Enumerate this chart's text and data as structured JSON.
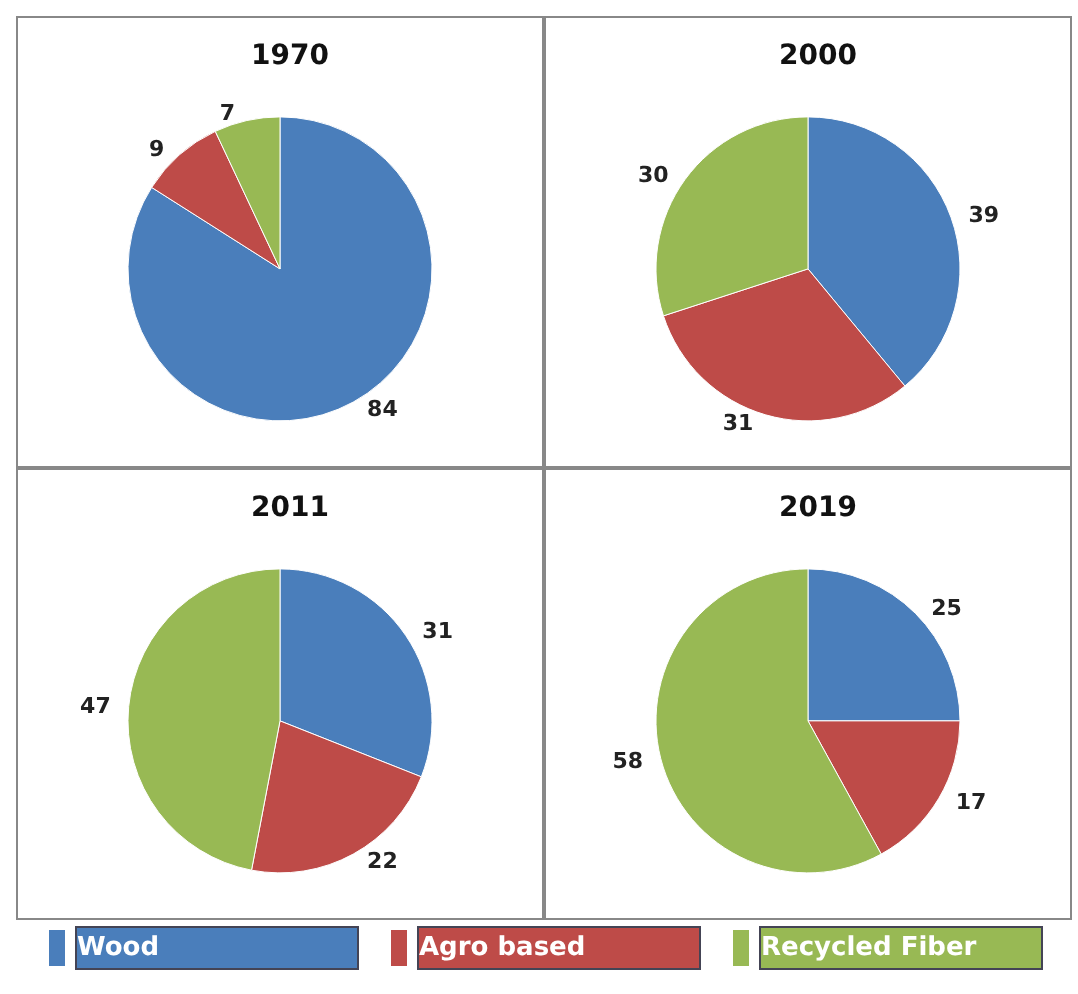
{
  "chart_data": [
    {
      "type": "pie",
      "title": "1970",
      "categories": [
        "Wood",
        "Agro based",
        "Recycled Fiber"
      ],
      "values": [
        84,
        9,
        7
      ],
      "colors": [
        "#4a7ebb",
        "#be4b48",
        "#98b954"
      ],
      "data_labels": true,
      "legend": "bottom"
    },
    {
      "type": "pie",
      "title": "2000",
      "categories": [
        null,
        null,
        null
      ],
      "values": [
        39,
        31,
        30
      ],
      "colors": [
        "#4a7ebb",
        "#be4b48",
        "#98b954"
      ],
      "data_labels": true
    },
    {
      "type": "pie",
      "title": "2011",
      "categories": [
        null,
        null,
        null
      ],
      "values": [
        31,
        22,
        47
      ],
      "colors": [
        "#4a7ebb",
        "#be4b48",
        "#98b954"
      ],
      "data_labels": true
    },
    {
      "type": "pie",
      "title": "2019",
      "categories": [
        null,
        null,
        null
      ],
      "values": [
        25,
        17,
        58
      ],
      "colors": [
        "#4a7ebb",
        "#be4b48",
        "#98b954"
      ],
      "data_labels": true
    }
  ]
}
